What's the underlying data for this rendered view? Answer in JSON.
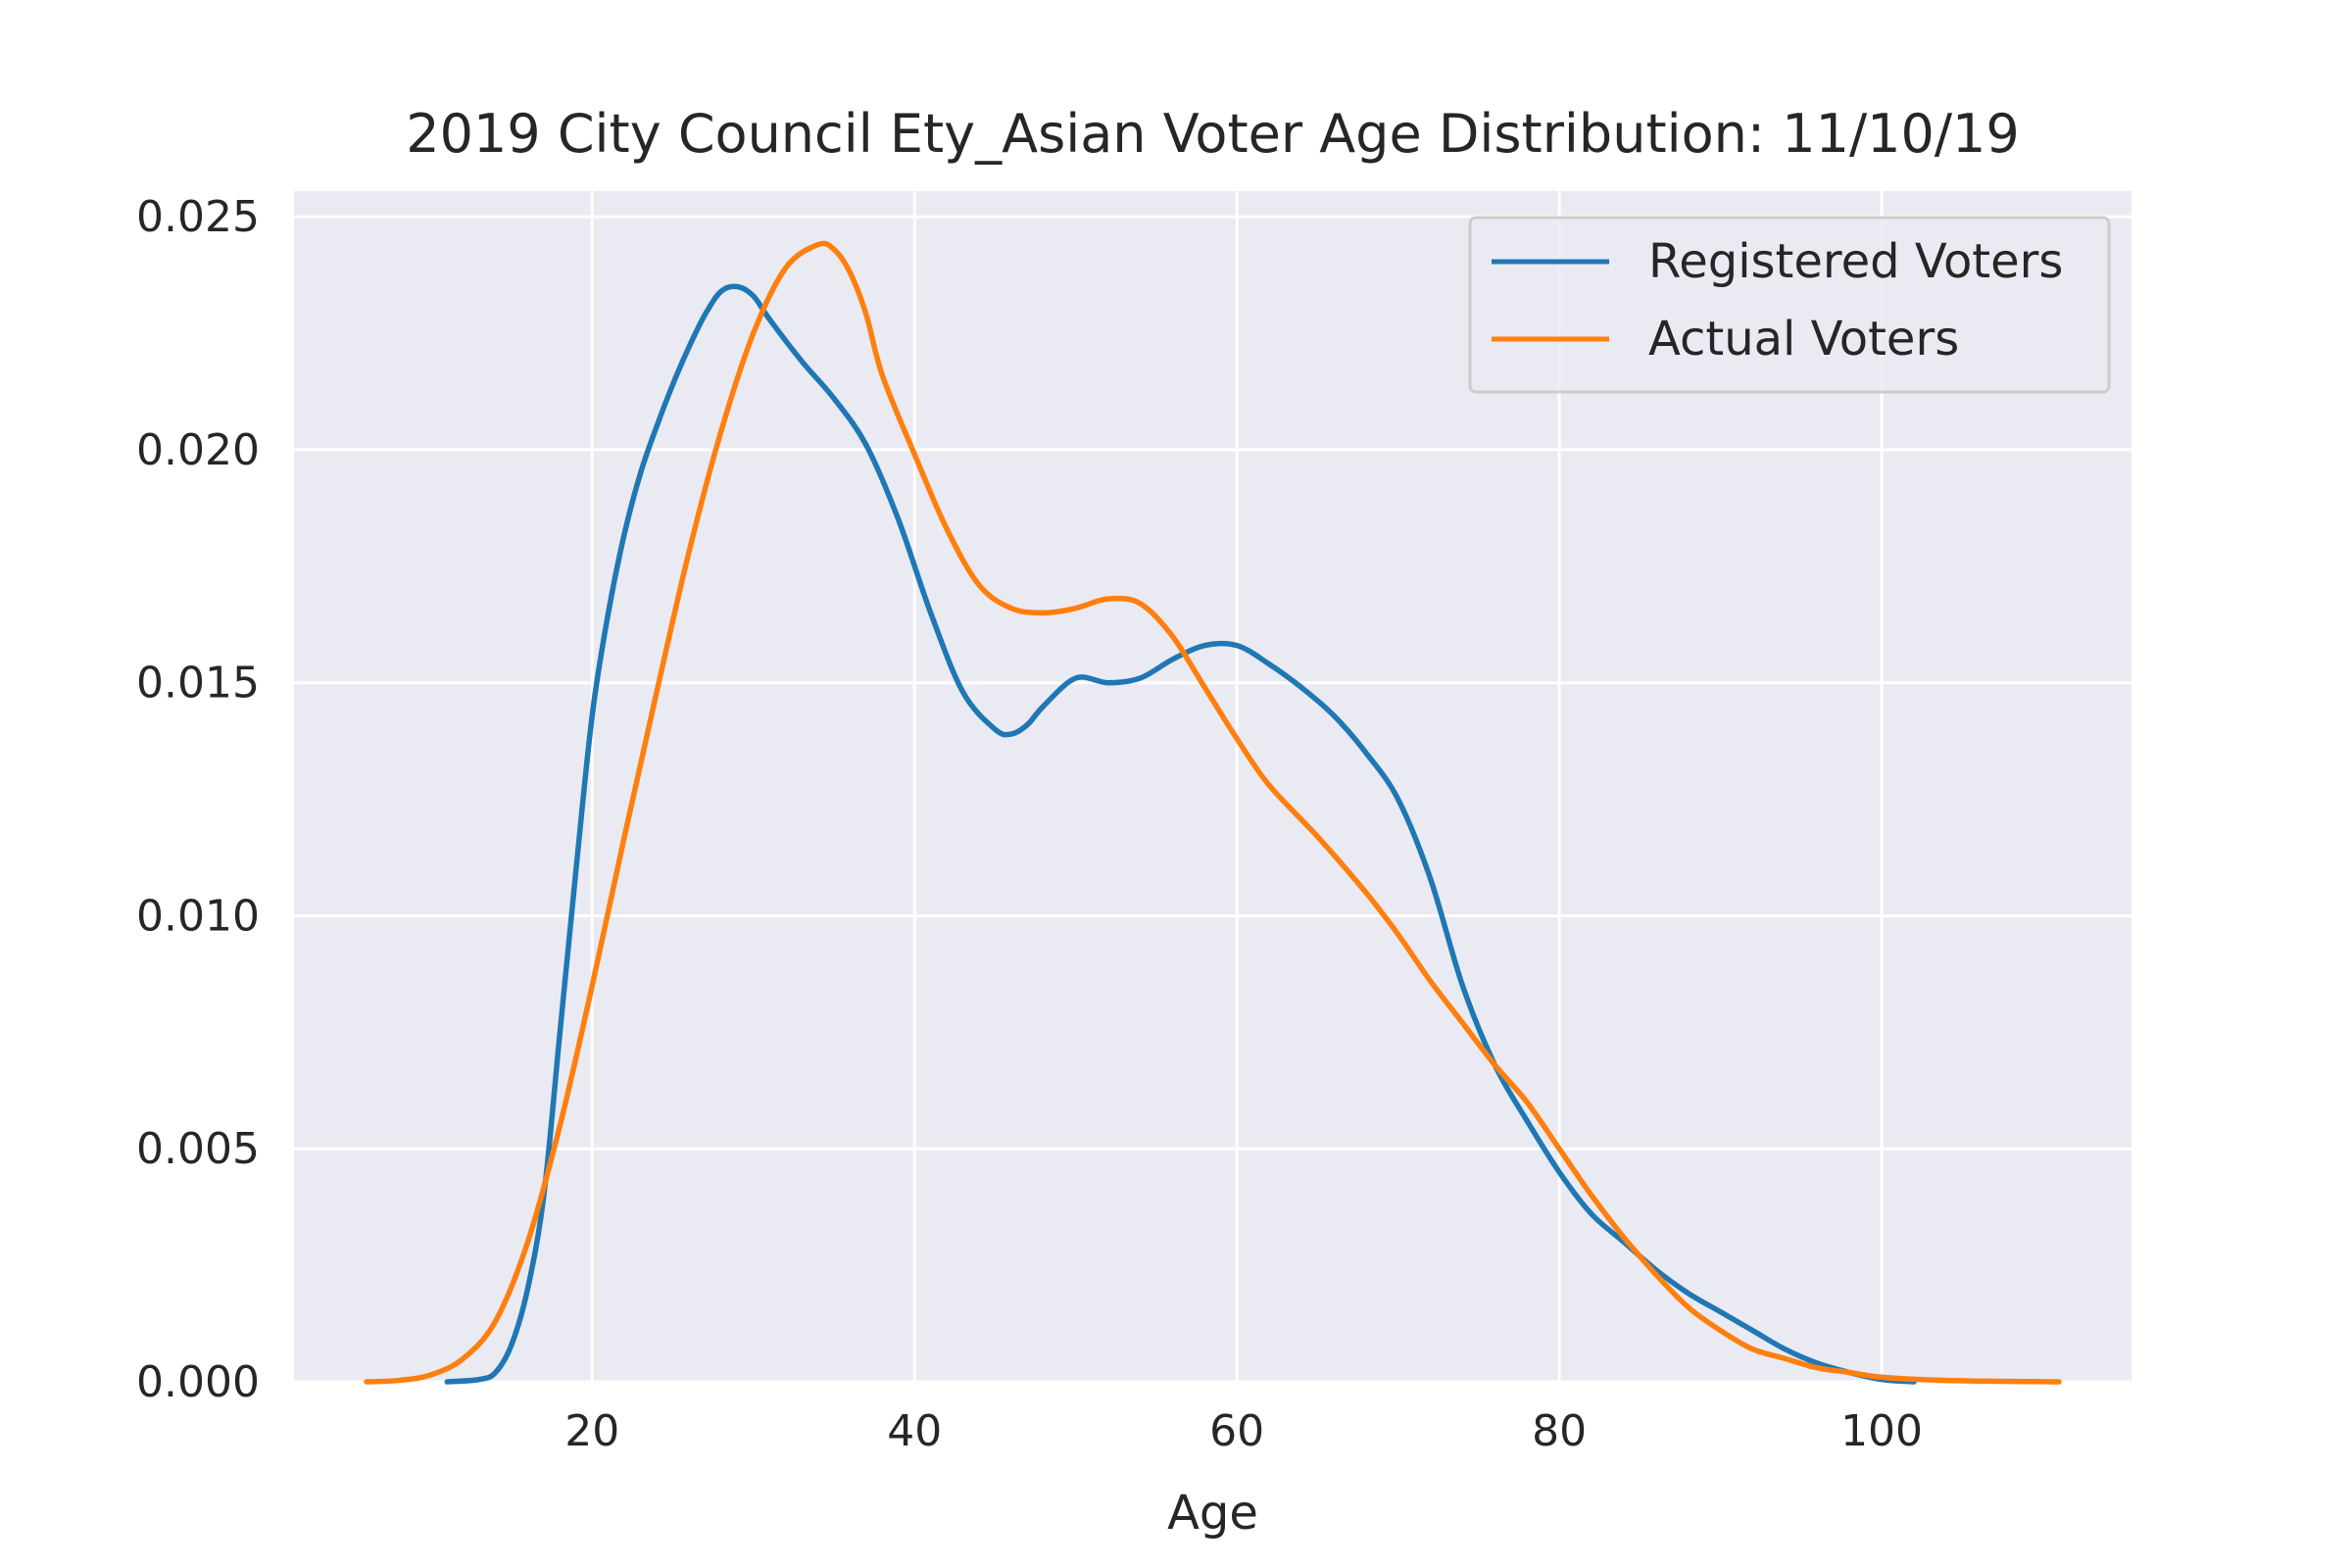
{
  "chart_data": {
    "type": "line",
    "title": "2019 City Council Ety_Asian Voter Age Distribution: 11/10/19",
    "xlabel": "Age",
    "ylabel": "",
    "xlim": [
      1.5,
      115.5
    ],
    "ylim": [
      0,
      0.02555
    ],
    "xticks": [
      20,
      40,
      60,
      80,
      100
    ],
    "xtick_labels": [
      "20",
      "40",
      "60",
      "80",
      "100"
    ],
    "yticks": [
      0,
      0.005,
      0.01,
      0.015,
      0.02,
      0.025
    ],
    "ytick_labels": [
      "0.000",
      "0.005",
      "0.010",
      "0.015",
      "0.020",
      "0.025"
    ],
    "grid": true,
    "legend_position": "top-right",
    "series": [
      {
        "name": "Registered Voters",
        "color": "#1f77b4",
        "points": [
          [
            11,
            0
          ],
          [
            13,
            5e-05
          ],
          [
            14,
            0.0002
          ],
          [
            15,
            0.0008
          ],
          [
            16,
            0.002
          ],
          [
            17,
            0.004
          ],
          [
            18,
            0.0075
          ],
          [
            19,
            0.011
          ],
          [
            20,
            0.0143
          ],
          [
            21,
            0.0165
          ],
          [
            22,
            0.0182
          ],
          [
            23,
            0.0195
          ],
          [
            24,
            0.0205
          ],
          [
            25,
            0.0214
          ],
          [
            26,
            0.0222
          ],
          [
            27,
            0.0229
          ],
          [
            28,
            0.0234
          ],
          [
            29,
            0.0235
          ],
          [
            30,
            0.0233
          ],
          [
            31,
            0.0228
          ],
          [
            33,
            0.0219
          ],
          [
            35,
            0.0211
          ],
          [
            37,
            0.0201
          ],
          [
            39,
            0.0185
          ],
          [
            41,
            0.0165
          ],
          [
            43,
            0.0148
          ],
          [
            45,
            0.014
          ],
          [
            46,
            0.0139
          ],
          [
            47,
            0.0141
          ],
          [
            48,
            0.0145
          ],
          [
            50,
            0.0151
          ],
          [
            52,
            0.015
          ],
          [
            54,
            0.0151
          ],
          [
            56,
            0.0155
          ],
          [
            58,
            0.0158
          ],
          [
            60,
            0.0158
          ],
          [
            62,
            0.0154
          ],
          [
            64,
            0.0149
          ],
          [
            66,
            0.0143
          ],
          [
            68,
            0.0135
          ],
          [
            70,
            0.0125
          ],
          [
            72,
            0.0108
          ],
          [
            74,
            0.0085
          ],
          [
            76,
            0.0068
          ],
          [
            78,
            0.0056
          ],
          [
            80,
            0.0045
          ],
          [
            82,
            0.0036
          ],
          [
            84,
            0.003
          ],
          [
            86,
            0.0024
          ],
          [
            88,
            0.0019
          ],
          [
            90,
            0.0015
          ],
          [
            92,
            0.0011
          ],
          [
            94,
            0.0007
          ],
          [
            96,
            0.0004
          ],
          [
            98,
            0.0002
          ],
          [
            100,
            5e-05
          ],
          [
            102,
            0
          ]
        ]
      },
      {
        "name": "Actual Voters",
        "color": "#ff7f0e",
        "points": [
          [
            6,
            0
          ],
          [
            8,
            3e-05
          ],
          [
            10,
            0.00015
          ],
          [
            12,
            0.0005
          ],
          [
            14,
            0.0013
          ],
          [
            16,
            0.003
          ],
          [
            18,
            0.0055
          ],
          [
            20,
            0.0085
          ],
          [
            22,
            0.0117
          ],
          [
            24,
            0.0148
          ],
          [
            26,
            0.0178
          ],
          [
            28,
            0.0204
          ],
          [
            30,
            0.0225
          ],
          [
            32,
            0.0239
          ],
          [
            34,
            0.0244
          ],
          [
            35,
            0.0243
          ],
          [
            36,
            0.0238
          ],
          [
            37,
            0.0229
          ],
          [
            38,
            0.0216
          ],
          [
            40,
            0.0199
          ],
          [
            42,
            0.0183
          ],
          [
            44,
            0.0171
          ],
          [
            46,
            0.0166
          ],
          [
            48,
            0.0165
          ],
          [
            50,
            0.0166
          ],
          [
            52,
            0.0168
          ],
          [
            54,
            0.0167
          ],
          [
            56,
            0.016
          ],
          [
            58,
            0.0149
          ],
          [
            60,
            0.0138
          ],
          [
            62,
            0.0128
          ],
          [
            65,
            0.0117
          ],
          [
            68,
            0.0105
          ],
          [
            70,
            0.0096
          ],
          [
            72,
            0.0086
          ],
          [
            74,
            0.0077
          ],
          [
            76,
            0.0068
          ],
          [
            78,
            0.006
          ],
          [
            80,
            0.005
          ],
          [
            82,
            0.004
          ],
          [
            84,
            0.0031
          ],
          [
            86,
            0.0023
          ],
          [
            88,
            0.0016
          ],
          [
            90,
            0.0011
          ],
          [
            92,
            0.0007
          ],
          [
            94,
            0.0005
          ],
          [
            96,
            0.0003
          ],
          [
            98,
            0.0002
          ],
          [
            100,
            0.0001
          ],
          [
            104,
            3e-05
          ],
          [
            111,
            0
          ]
        ]
      }
    ]
  }
}
